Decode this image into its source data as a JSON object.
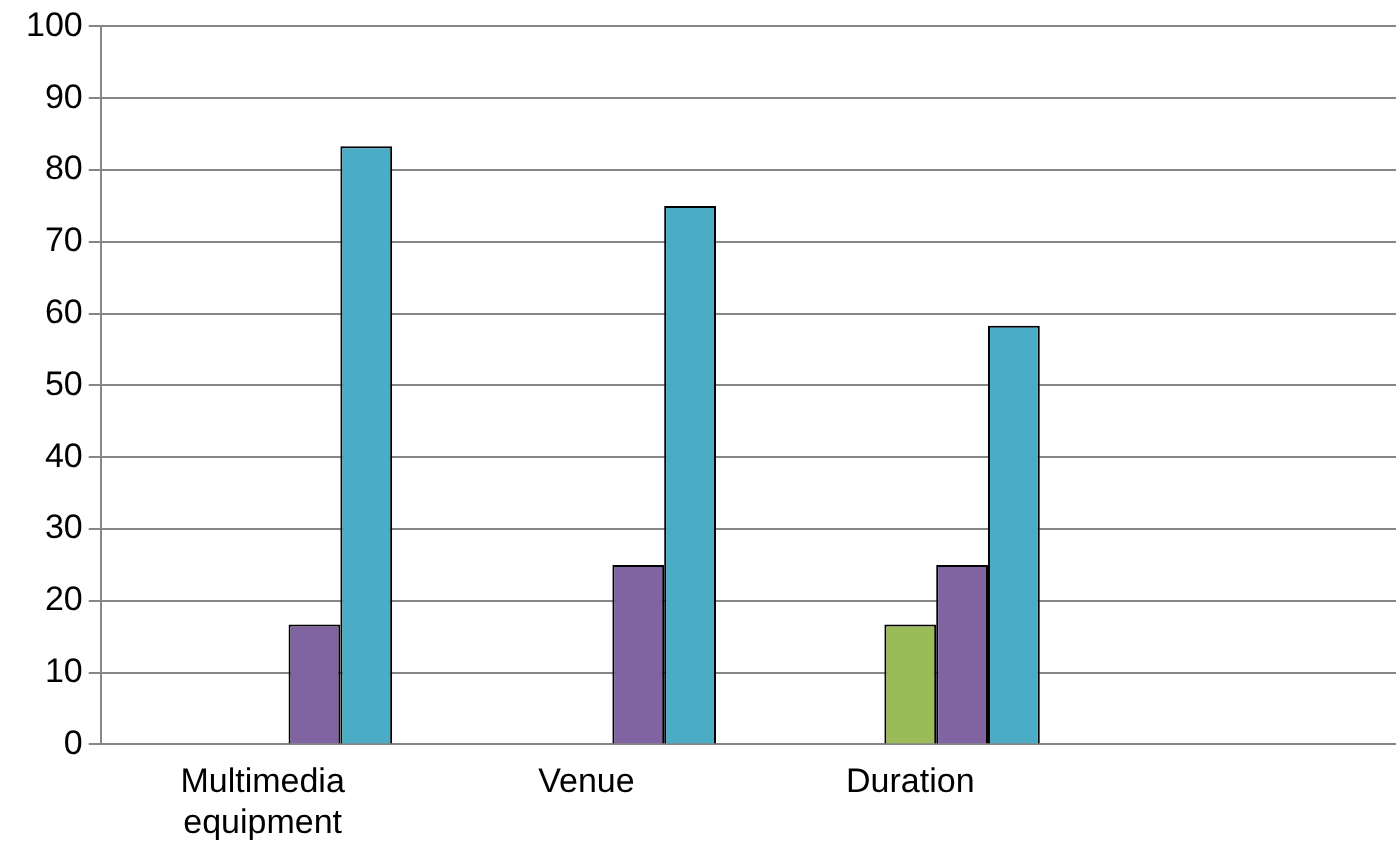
{
  "chart_data": {
    "type": "bar",
    "categories": [
      "Multimedia equipment",
      "Venue",
      "Duration",
      null
    ],
    "series": [
      {
        "color": "#4f81bd",
        "values": [
          null,
          null,
          null,
          null
        ]
      },
      {
        "color": "#c0504d",
        "values": [
          null,
          null,
          null,
          null
        ]
      },
      {
        "color": "#9bbb59",
        "values": [
          null,
          null,
          16.7,
          null
        ]
      },
      {
        "color": "#8064a2",
        "values": [
          16.7,
          25,
          25,
          null
        ]
      },
      {
        "color": "#4bacc6",
        "values": [
          83.3,
          75,
          58.3,
          null
        ]
      }
    ],
    "ylim": [
      0,
      100
    ],
    "yticks": [
      0,
      10,
      20,
      30,
      40,
      50,
      60,
      70,
      80,
      90,
      100
    ],
    "grid": "y",
    "legend": false
  }
}
